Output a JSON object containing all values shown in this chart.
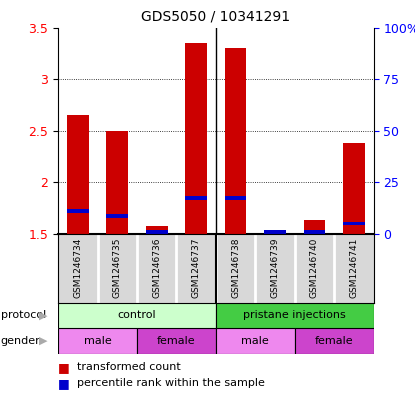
{
  "title": "GDS5050 / 10341291",
  "samples": [
    "GSM1246734",
    "GSM1246735",
    "GSM1246736",
    "GSM1246737",
    "GSM1246738",
    "GSM1246739",
    "GSM1246740",
    "GSM1246741"
  ],
  "transformed_counts": [
    2.65,
    2.5,
    1.58,
    3.35,
    3.3,
    1.53,
    1.63,
    2.38
  ],
  "baseline": 1.5,
  "percentile_positions": [
    1.72,
    1.67,
    1.52,
    1.85,
    1.85,
    1.52,
    1.52,
    1.6
  ],
  "ylim": [
    1.5,
    3.5
  ],
  "yticks_left": [
    1.5,
    2.0,
    2.5,
    3.0,
    3.5
  ],
  "yticks_right_labels": [
    "0",
    "25",
    "50",
    "75",
    "100%"
  ],
  "yticks_right_vals": [
    1.5,
    2.0,
    2.5,
    3.0,
    3.5
  ],
  "bar_color": "#cc0000",
  "percentile_color": "#0000cc",
  "protocol_labels": [
    "control",
    "pristane injections"
  ],
  "protocol_colors": [
    "#ccffcc",
    "#44cc44"
  ],
  "gender_labels": [
    "male",
    "female",
    "male",
    "female"
  ],
  "gender_colors": [
    "#ee88ee",
    "#cc44cc",
    "#ee88ee",
    "#cc44cc"
  ],
  "bg_color": "#d8d8d8",
  "divider_color": "#ffffff",
  "bar_width": 0.55
}
